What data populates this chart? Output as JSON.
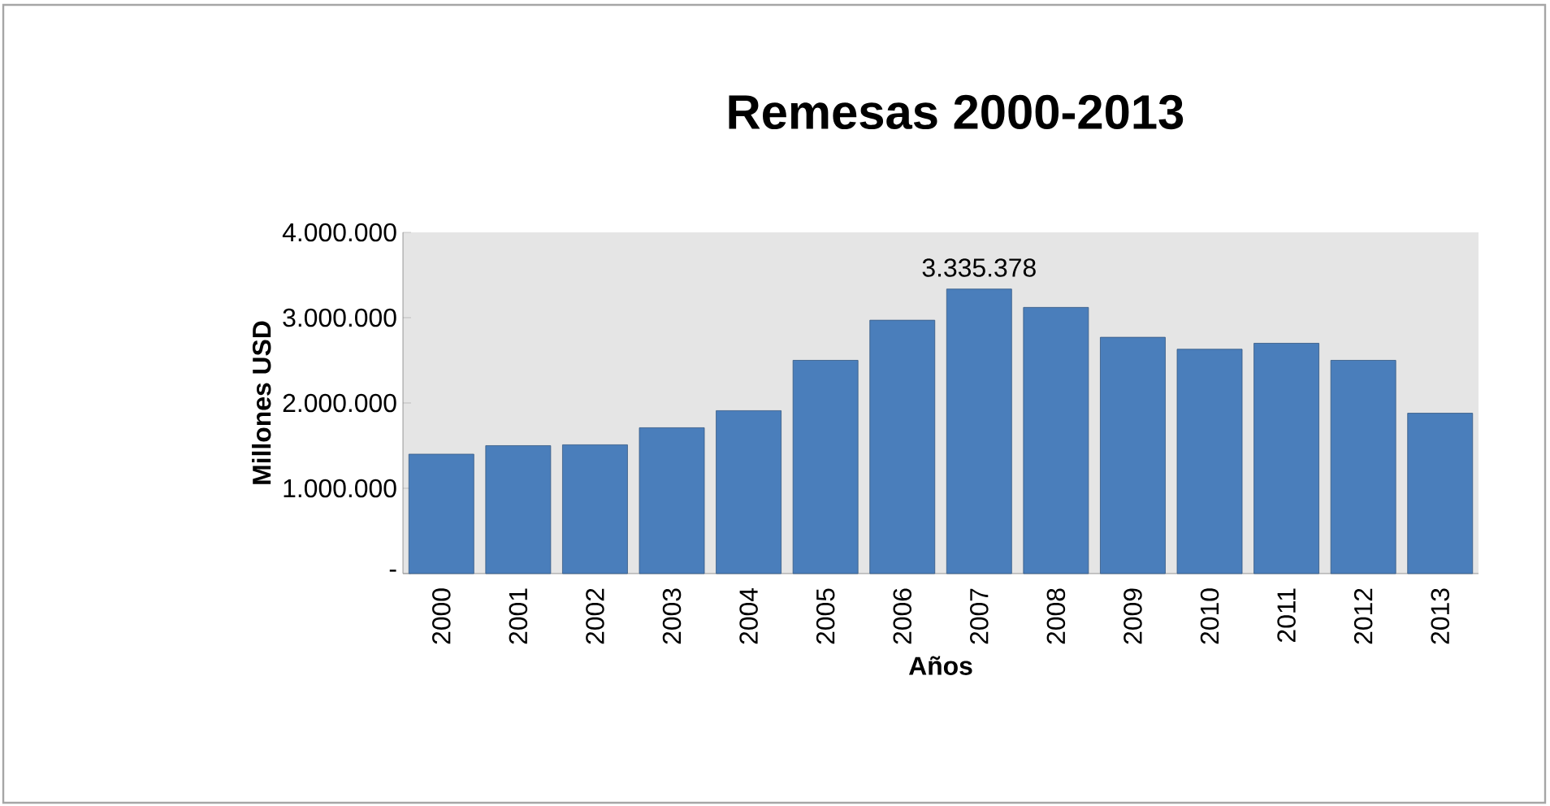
{
  "chart_data": {
    "type": "bar",
    "title": "Remesas 2000-2013",
    "xlabel": "Años",
    "ylabel": "Millones USD",
    "categories": [
      "2000",
      "2001",
      "2002",
      "2003",
      "2004",
      "2005",
      "2006",
      "2007",
      "2008",
      "2009",
      "2010",
      "2011",
      "2012",
      "2013"
    ],
    "values": [
      1400000,
      1500000,
      1510000,
      1710000,
      1910000,
      2500000,
      2970000,
      3335378,
      3120000,
      2770000,
      2630000,
      2700000,
      2500000,
      1880000
    ],
    "value_labels": [
      null,
      null,
      null,
      null,
      null,
      null,
      null,
      "3.335.378",
      null,
      null,
      null,
      null,
      null,
      null
    ],
    "color": "#4a7ebb",
    "ylim": [
      0,
      4000000
    ],
    "yticks": [
      {
        "value": 0,
        "label": "-"
      },
      {
        "value": 1000000,
        "label": "1.000.000"
      },
      {
        "value": 2000000,
        "label": "2.000.000"
      },
      {
        "value": 3000000,
        "label": "3.000.000"
      },
      {
        "value": 4000000,
        "label": "4.000.000"
      }
    ],
    "grid": false
  }
}
